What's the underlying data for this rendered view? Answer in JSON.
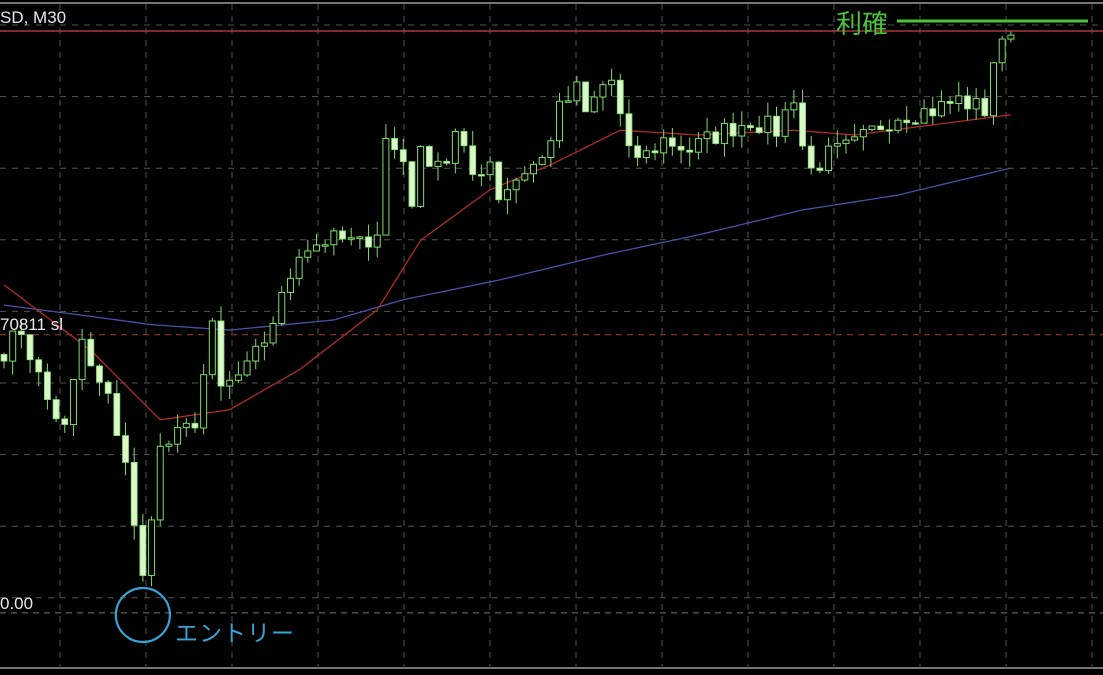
{
  "chart_data": {
    "type": "candlestick",
    "symbol_label": "SD, M30",
    "ylim": [
      0,
      100
    ],
    "grid": true,
    "colors": {
      "background": "#000000",
      "bull_outline": "#7fdc6a",
      "bear_fill": "#d9f7c8",
      "ma_fast": "#b02a2a",
      "ma_slow": "#4a4fa8",
      "tp_line": "#a33a3a",
      "sl_line": "#a33a3a",
      "grid": "#555555",
      "tp_annotation": "#49c43a",
      "entry_annotation": "#3aa3d6"
    },
    "candle_count": 117,
    "close_path": {
      "index": [
        0,
        2,
        5,
        7,
        9,
        10,
        12,
        14,
        15,
        16,
        17,
        18,
        21,
        22,
        24,
        25,
        28,
        30,
        32,
        34,
        37,
        39,
        41,
        43,
        44,
        46,
        47,
        48,
        51,
        52,
        54,
        56,
        57,
        60,
        62,
        64,
        66,
        67,
        69,
        70,
        72,
        74,
        76,
        79,
        83,
        86,
        89,
        91,
        92,
        93,
        95,
        98,
        101,
        103,
        107,
        110,
        113,
        114,
        116
      ],
      "value": [
        48.1,
        51.1,
        40.7,
        36.3,
        49.6,
        45.2,
        40.7,
        31.9,
        21.5,
        14.1,
        24.4,
        33.3,
        36.3,
        37.8,
        51.1,
        42.2,
        45.2,
        49.6,
        55.6,
        63.0,
        64.4,
        64.4,
        63.7,
        65.9,
        79.3,
        76.3,
        70.4,
        77.0,
        76.3,
        80.0,
        74.1,
        76.3,
        71.1,
        74.8,
        76.3,
        83.7,
        86.7,
        83.0,
        87.4,
        88.1,
        77.0,
        77.0,
        79.3,
        77.8,
        80.7,
        82.2,
        80.7,
        85.9,
        78.5,
        74.8,
        77.0,
        78.5,
        81.5,
        83.0,
        83.7,
        85.2,
        83.7,
        91.1,
        94.8
      ]
    },
    "ma_fast": {
      "index": [
        0,
        10,
        18,
        26,
        34,
        43,
        48,
        56,
        63,
        71,
        80,
        91,
        98,
        107,
        116
      ],
      "value": [
        57.8,
        48.1,
        37.8,
        39.3,
        45.2,
        54.1,
        64.4,
        71.9,
        75.6,
        80.7,
        80.0,
        80.7,
        80.0,
        81.5,
        83.0
      ]
    },
    "ma_slow": {
      "index": [
        0,
        9,
        17,
        26,
        38,
        46,
        57,
        69,
        80,
        92,
        103,
        116
      ],
      "value": [
        54.8,
        53.3,
        51.9,
        51.1,
        52.6,
        55.6,
        58.5,
        62.2,
        65.2,
        68.9,
        71.1,
        75.1
      ]
    },
    "levels": {
      "take_profit": 95.4,
      "stop_loss": 50.4,
      "entry": 9.2
    },
    "labels": {
      "sl_label": "70811 sl",
      "entry_price_label": "0.00"
    },
    "annotations": {
      "take_profit_text": "利確",
      "entry_text": "エントリー",
      "entry_candle_index": 16
    }
  }
}
